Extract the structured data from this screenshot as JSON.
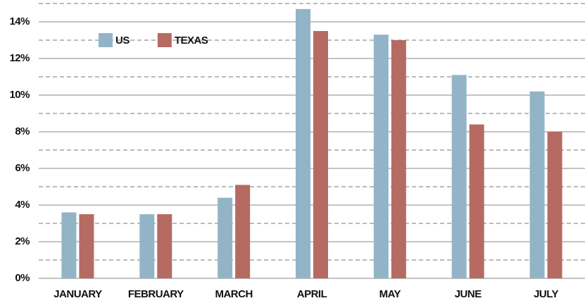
{
  "chart_data": {
    "type": "bar",
    "categories": [
      "JANUARY",
      "FEBRUARY",
      "MARCH",
      "APRIL",
      "MAY",
      "JUNE",
      "JULY"
    ],
    "series": [
      {
        "name": "US",
        "color": "#93b4c6",
        "values": [
          3.6,
          3.5,
          4.4,
          14.7,
          13.3,
          11.1,
          10.2
        ]
      },
      {
        "name": "TEXAS",
        "color": "#b56b62",
        "values": [
          3.5,
          3.5,
          5.1,
          13.5,
          13.0,
          8.4,
          8.0
        ]
      }
    ],
    "ylim": [
      0,
      15
    ],
    "yticks": [
      {
        "value": 0,
        "label": "0%"
      },
      {
        "value": 2,
        "label": "2%"
      },
      {
        "value": 4,
        "label": "4%"
      },
      {
        "value": 6,
        "label": "6%"
      },
      {
        "value": 8,
        "label": "8%"
      },
      {
        "value": 10,
        "label": "10%"
      },
      {
        "value": 12,
        "label": "12%"
      },
      {
        "value": 14,
        "label": "14%"
      }
    ],
    "minor_yticks": [
      1,
      3,
      5,
      7,
      9,
      11,
      13,
      15
    ],
    "grid": true,
    "legend": "top-left"
  }
}
